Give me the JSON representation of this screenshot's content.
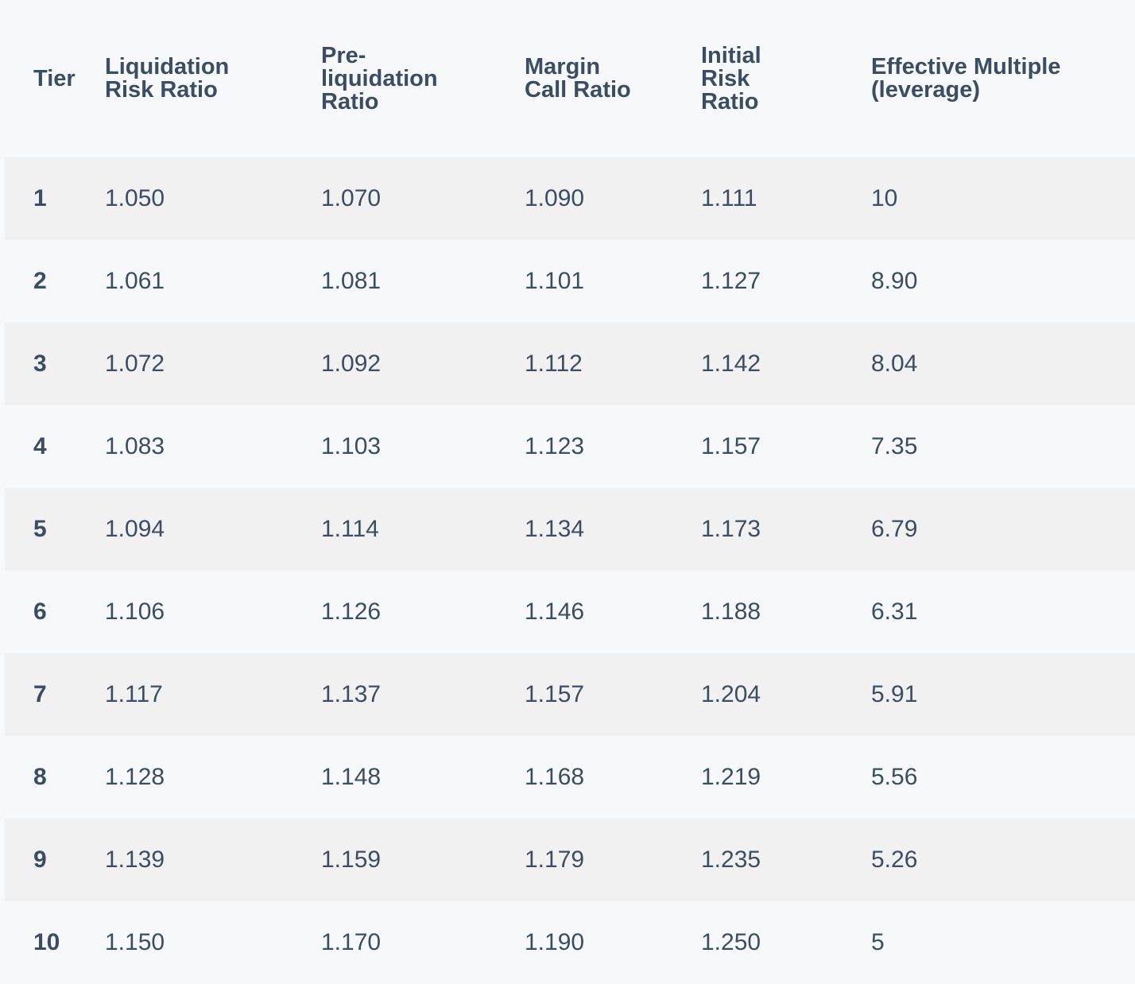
{
  "table": {
    "headers": [
      {
        "key": "tier",
        "lines": [
          "Tier"
        ]
      },
      {
        "key": "liquidation_risk_ratio",
        "lines": [
          "Liquidation",
          "Risk Ratio"
        ]
      },
      {
        "key": "pre_liquidation_ratio",
        "lines": [
          "Pre-",
          "liquidation",
          "Ratio"
        ]
      },
      {
        "key": "margin_call_ratio",
        "lines": [
          "Margin",
          "Call Ratio"
        ]
      },
      {
        "key": "initial_risk_ratio",
        "lines": [
          "Initial",
          "Risk",
          "Ratio"
        ]
      },
      {
        "key": "effective_multiple",
        "lines": [
          "Effective Multiple",
          "(leverage)"
        ]
      }
    ],
    "rows": [
      [
        "1",
        "1.050",
        "1.070",
        "1.090",
        "1.111",
        "10"
      ],
      [
        "2",
        "1.061",
        "1.081",
        "1.101",
        "1.127",
        "8.90"
      ],
      [
        "3",
        "1.072",
        "1.092",
        "1.112",
        "1.142",
        "8.04"
      ],
      [
        "4",
        "1.083",
        "1.103",
        "1.123",
        "1.157",
        "7.35"
      ],
      [
        "5",
        "1.094",
        "1.114",
        "1.134",
        "1.173",
        "6.79"
      ],
      [
        "6",
        "1.106",
        "1.126",
        "1.146",
        "1.188",
        "6.31"
      ],
      [
        "7",
        "1.117",
        "1.137",
        "1.157",
        "1.204",
        "5.91"
      ],
      [
        "8",
        "1.128",
        "1.148",
        "1.168",
        "1.219",
        "5.56"
      ],
      [
        "9",
        "1.139",
        "1.159",
        "1.179",
        "1.235",
        "5.26"
      ],
      [
        "10",
        "1.150",
        "1.170",
        "1.190",
        "1.250",
        "5"
      ]
    ]
  },
  "colors": {
    "text": "#3a4d62",
    "row_striped": "#f1f1f1",
    "row_plain": "#f7f8fa"
  }
}
